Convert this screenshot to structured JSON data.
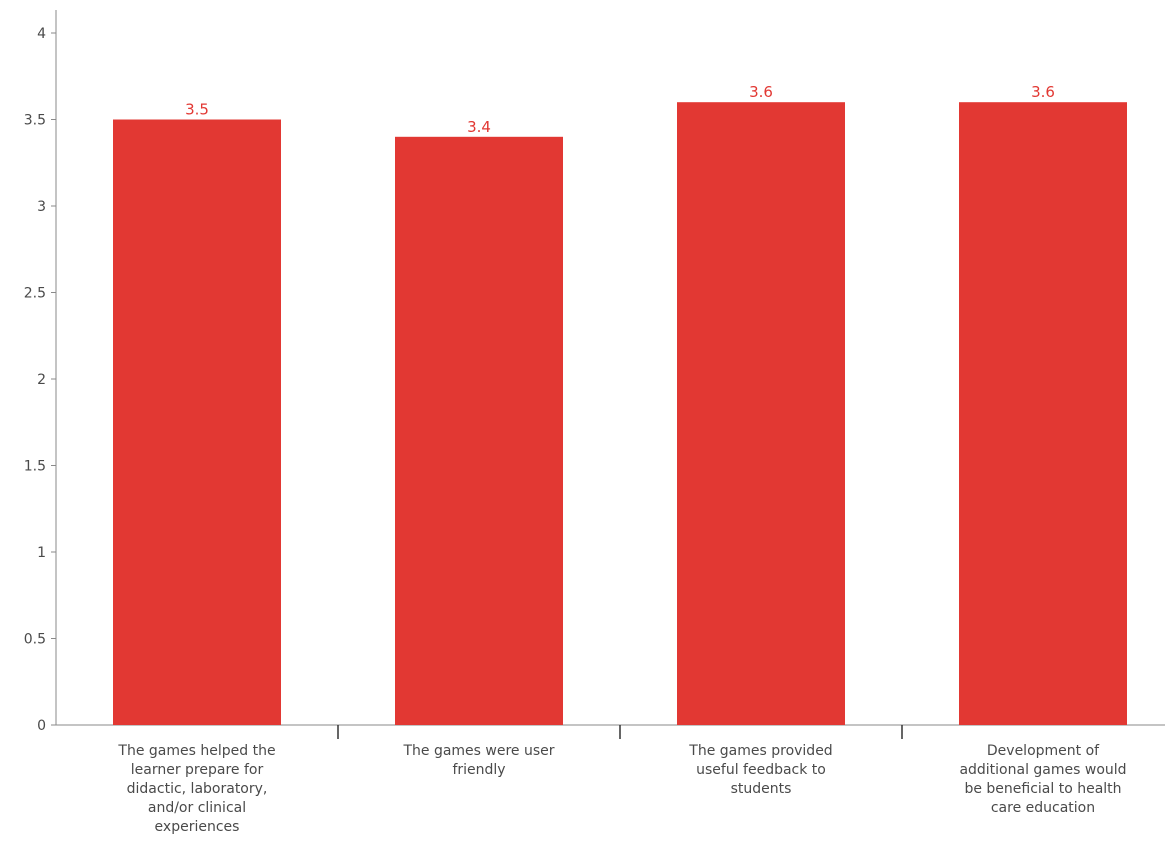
{
  "chart_data": {
    "type": "bar",
    "categories": [
      "The games helped the learner prepare for didactic, laboratory, and/or clinical experiences",
      "The games were user friendly",
      "The games provided useful feedback to students",
      "Development of additional games would be beneficial to health care education"
    ],
    "category_lines": [
      [
        "The games helped the",
        "learner prepare for",
        "didactic, laboratory,",
        "and/or clinical",
        "experiences"
      ],
      [
        "The games were user",
        "friendly"
      ],
      [
        "The games provided",
        "useful feedback to",
        "students"
      ],
      [
        "Development of",
        "additional games would",
        "be beneficial to health",
        "care education"
      ]
    ],
    "values": [
      3.5,
      3.4,
      3.6,
      3.6
    ],
    "data_labels": [
      "3.5",
      "3.4",
      "3.6",
      "3.6"
    ],
    "y_ticks": [
      0,
      0.5,
      1,
      1.5,
      2,
      2.5,
      3,
      3.5,
      4
    ],
    "y_tick_labels": [
      "0",
      "0.5",
      "1",
      "1.5",
      "2",
      "2.5",
      "3",
      "3.5",
      "4"
    ],
    "ylim": [
      0,
      4
    ],
    "title": "",
    "xlabel": "",
    "ylabel": "",
    "grid": false,
    "legend": "none",
    "colors": {
      "bar": "#e23833",
      "data_label": "#e23833",
      "axis": "#8a8a8a",
      "text": "#4a4a4a"
    }
  }
}
